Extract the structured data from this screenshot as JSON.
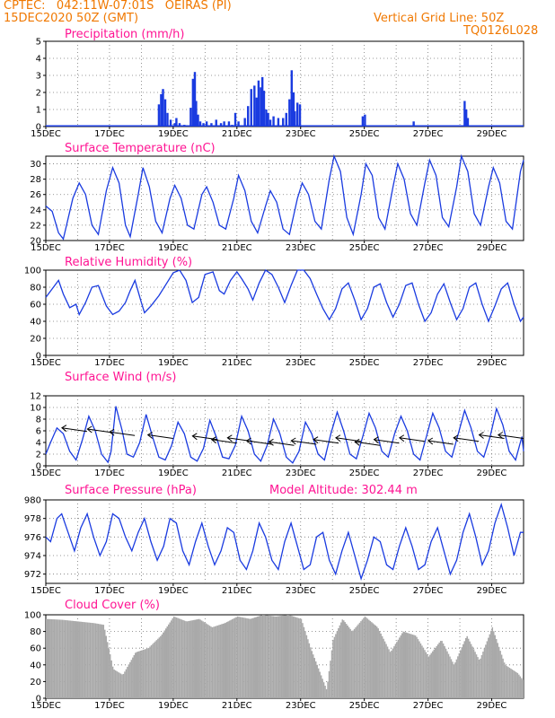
{
  "header": {
    "line1": "CPTEC:   042:11W-07:01S   OEIRAS (PI)",
    "line2": "15DEC2020 50Z (GMT)",
    "right1": "Vertical Grid Line: 50Z",
    "right2": "TQ0126L028"
  },
  "x_labels": [
    "15DEC",
    "17DEC",
    "19DEC",
    "21DEC",
    "23DEC",
    "25DEC",
    "27DEC",
    "29DEC"
  ],
  "panel_titles": {
    "precip": "Precipitation (mm/h)",
    "temp": "Surface Temperature (nC)",
    "rh": "Relative Humidity (%)",
    "wind": "Surface Wind (m/s)",
    "pres": "Surface Pressure (hPa)",
    "altitude": "Model Altitude: 302.44 m",
    "cloud": "Cloud Cover (%)"
  },
  "colors": {
    "line": "#1a3be0",
    "precip": "#1a3be0",
    "cloud": "#a9a9a9",
    "header": "#f07800",
    "title": "#ff1493"
  },
  "chart_data": [
    {
      "type": "bar",
      "title": "Precipitation (mm/h)",
      "xlim": [
        15,
        30
      ],
      "ylim": [
        0,
        5
      ],
      "yticks": [
        0,
        1,
        2,
        3,
        4,
        5
      ],
      "x": [
        18.55,
        18.62,
        18.68,
        18.75,
        18.82,
        18.92,
        19.05,
        19.1,
        19.2,
        19.35,
        19.55,
        19.62,
        19.68,
        19.72,
        19.78,
        19.85,
        19.95,
        20.05,
        20.2,
        20.35,
        20.5,
        20.6,
        20.75,
        20.85,
        20.95,
        21.05,
        21.25,
        21.35,
        21.45,
        21.55,
        21.62,
        21.68,
        21.75,
        21.8,
        21.85,
        21.92,
        21.98,
        22.05,
        22.15,
        22.3,
        22.45,
        22.55,
        22.65,
        22.72,
        22.78,
        22.82,
        22.9,
        22.98,
        24.95,
        25.02,
        26.55,
        28.15,
        28.2,
        28.25
      ],
      "values": [
        1.3,
        1.9,
        2.2,
        1.6,
        0.8,
        0.4,
        0.2,
        0.5,
        0.2,
        0.1,
        1.1,
        2.8,
        3.2,
        1.5,
        0.7,
        0.3,
        0.2,
        0.3,
        0.2,
        0.4,
        0.2,
        0.3,
        0.3,
        0.1,
        0.8,
        0.3,
        0.5,
        1.2,
        2.2,
        2.4,
        1.7,
        2.7,
        2.3,
        2.9,
        2.1,
        1.0,
        0.8,
        0.4,
        0.6,
        0.5,
        0.5,
        0.8,
        1.6,
        3.3,
        2.0,
        0.9,
        1.4,
        1.3,
        0.6,
        0.7,
        0.3,
        1.5,
        1.0,
        0.5
      ]
    },
    {
      "type": "line",
      "title": "Surface Temperature (nC)",
      "xlim": [
        15,
        30
      ],
      "ylim": [
        20,
        31
      ],
      "yticks": [
        20,
        22,
        24,
        26,
        28,
        30
      ],
      "x": [
        15.0,
        15.2,
        15.4,
        15.55,
        15.85,
        16.05,
        16.25,
        16.45,
        16.65,
        16.9,
        17.1,
        17.3,
        17.5,
        17.65,
        17.9,
        18.05,
        18.25,
        18.45,
        18.65,
        18.9,
        19.05,
        19.25,
        19.45,
        19.65,
        19.9,
        20.05,
        20.25,
        20.45,
        20.65,
        20.9,
        21.05,
        21.25,
        21.45,
        21.65,
        21.9,
        22.05,
        22.25,
        22.45,
        22.65,
        22.9,
        23.05,
        23.25,
        23.45,
        23.65,
        23.9,
        24.05,
        24.25,
        24.45,
        24.65,
        24.9,
        25.05,
        25.25,
        25.45,
        25.65,
        25.9,
        26.05,
        26.25,
        26.45,
        26.65,
        26.9,
        27.05,
        27.25,
        27.45,
        27.65,
        27.9,
        28.05,
        28.25,
        28.45,
        28.65,
        28.9,
        29.05,
        29.25,
        29.45,
        29.65,
        29.9,
        30.0
      ],
      "values": [
        24.5,
        23.8,
        21.0,
        20.2,
        25.5,
        27.5,
        26.0,
        22.0,
        20.8,
        26.5,
        29.5,
        27.5,
        22.0,
        20.5,
        26.0,
        29.5,
        27.0,
        22.5,
        21.0,
        25.5,
        27.2,
        25.5,
        22.0,
        21.5,
        26.0,
        27.0,
        25.0,
        22.0,
        21.5,
        25.5,
        28.5,
        26.5,
        22.5,
        21.0,
        24.5,
        26.5,
        25.0,
        21.5,
        20.8,
        25.5,
        27.5,
        26.0,
        22.5,
        21.5,
        28.0,
        31.0,
        29.0,
        23.0,
        20.8,
        26.0,
        30.0,
        28.5,
        23.0,
        21.5,
        27.0,
        30.0,
        28.0,
        23.5,
        22.0,
        27.5,
        30.5,
        28.5,
        23.0,
        21.8,
        27.0,
        31.0,
        29.0,
        23.5,
        22.0,
        27.0,
        29.5,
        27.5,
        22.5,
        21.5,
        29.0,
        30.5
      ]
    },
    {
      "type": "line",
      "title": "Relative Humidity (%)",
      "xlim": [
        15,
        30
      ],
      "ylim": [
        0,
        100
      ],
      "yticks": [
        0,
        20,
        40,
        60,
        80,
        100
      ],
      "x": [
        15.0,
        15.2,
        15.4,
        15.55,
        15.75,
        15.95,
        16.05,
        16.25,
        16.45,
        16.65,
        16.9,
        17.1,
        17.3,
        17.5,
        17.65,
        17.8,
        18.0,
        18.1,
        18.3,
        18.55,
        18.8,
        19.0,
        19.2,
        19.4,
        19.6,
        19.8,
        20.0,
        20.25,
        20.45,
        20.6,
        20.8,
        21.0,
        21.15,
        21.35,
        21.5,
        21.7,
        21.9,
        22.1,
        22.3,
        22.5,
        22.7,
        22.9,
        23.1,
        23.3,
        23.5,
        23.7,
        23.9,
        24.1,
        24.3,
        24.5,
        24.7,
        24.9,
        25.1,
        25.3,
        25.5,
        25.7,
        25.9,
        26.1,
        26.3,
        26.5,
        26.7,
        26.9,
        27.1,
        27.3,
        27.5,
        27.7,
        27.9,
        28.1,
        28.3,
        28.5,
        28.7,
        28.9,
        29.1,
        29.3,
        29.5,
        29.7,
        29.9,
        30.0
      ],
      "values": [
        68,
        78,
        88,
        72,
        56,
        60,
        48,
        62,
        80,
        82,
        58,
        48,
        52,
        62,
        76,
        88,
        62,
        50,
        58,
        70,
        85,
        97,
        100,
        88,
        62,
        68,
        95,
        98,
        76,
        72,
        88,
        98,
        90,
        78,
        65,
        85,
        100,
        95,
        80,
        62,
        82,
        100,
        100,
        90,
        72,
        55,
        42,
        55,
        78,
        85,
        65,
        42,
        55,
        80,
        84,
        62,
        45,
        60,
        82,
        85,
        60,
        40,
        50,
        72,
        84,
        62,
        42,
        55,
        80,
        85,
        60,
        40,
        58,
        78,
        85,
        60,
        40,
        45
      ]
    },
    {
      "type": "line",
      "title": "Surface Wind (m/s)",
      "xlim": [
        15,
        30
      ],
      "ylim": [
        0,
        12
      ],
      "yticks": [
        0,
        2,
        4,
        6,
        8,
        10,
        12
      ],
      "x": [
        15.0,
        15.15,
        15.35,
        15.55,
        15.75,
        15.95,
        16.15,
        16.35,
        16.55,
        16.75,
        16.95,
        17.05,
        17.2,
        17.4,
        17.55,
        17.75,
        17.95,
        18.15,
        18.35,
        18.55,
        18.75,
        18.95,
        19.15,
        19.35,
        19.55,
        19.75,
        19.95,
        20.15,
        20.35,
        20.55,
        20.75,
        20.95,
        21.15,
        21.35,
        21.55,
        21.75,
        21.95,
        22.15,
        22.35,
        22.55,
        22.75,
        22.95,
        23.15,
        23.35,
        23.55,
        23.75,
        23.95,
        24.15,
        24.35,
        24.55,
        24.75,
        24.95,
        25.15,
        25.35,
        25.55,
        25.75,
        25.95,
        26.15,
        26.35,
        26.55,
        26.75,
        26.95,
        27.15,
        27.35,
        27.55,
        27.75,
        27.95,
        28.15,
        28.35,
        28.55,
        28.75,
        28.95,
        29.15,
        29.35,
        29.55,
        29.75,
        29.95,
        30.0
      ],
      "values": [
        2.0,
        4.0,
        6.5,
        5.5,
        2.5,
        1.0,
        4.5,
        8.5,
        6.0,
        2.0,
        0.6,
        2.5,
        10.2,
        6.0,
        2.0,
        1.5,
        4.0,
        8.8,
        5.0,
        1.5,
        1.0,
        3.5,
        7.5,
        5.5,
        1.5,
        0.8,
        3.0,
        7.8,
        5.0,
        1.5,
        1.2,
        3.5,
        8.5,
        6.0,
        2.0,
        0.8,
        3.5,
        8.0,
        5.5,
        1.5,
        0.5,
        2.5,
        7.5,
        5.5,
        2.0,
        1.0,
        5.5,
        9.2,
        6.0,
        2.0,
        1.2,
        5.0,
        9.0,
        6.5,
        2.5,
        1.5,
        5.5,
        8.5,
        6.0,
        2.0,
        1.0,
        5.0,
        9.0,
        6.5,
        2.5,
        1.5,
        5.5,
        9.5,
        6.5,
        2.5,
        1.5,
        5.0,
        9.8,
        7.0,
        2.5,
        1.0,
        5.0,
        2.5
      ]
    },
    {
      "type": "line",
      "title": "Surface Pressure (hPa)",
      "xlim": [
        15,
        30
      ],
      "ylim": [
        971,
        980
      ],
      "yticks": [
        972,
        974,
        976,
        978,
        980
      ],
      "x": [
        15.0,
        15.15,
        15.35,
        15.5,
        15.7,
        15.9,
        16.1,
        16.3,
        16.5,
        16.7,
        16.9,
        17.1,
        17.3,
        17.5,
        17.7,
        17.9,
        18.1,
        18.3,
        18.5,
        18.7,
        18.9,
        19.1,
        19.3,
        19.5,
        19.7,
        19.9,
        20.1,
        20.3,
        20.5,
        20.7,
        20.9,
        21.1,
        21.3,
        21.5,
        21.7,
        21.9,
        22.1,
        22.3,
        22.5,
        22.7,
        22.9,
        23.1,
        23.3,
        23.5,
        23.7,
        23.9,
        24.1,
        24.3,
        24.5,
        24.7,
        24.9,
        25.1,
        25.3,
        25.5,
        25.7,
        25.9,
        26.1,
        26.3,
        26.5,
        26.7,
        26.9,
        27.1,
        27.3,
        27.5,
        27.7,
        27.9,
        28.1,
        28.3,
        28.5,
        28.7,
        28.9,
        29.1,
        29.3,
        29.5,
        29.7,
        29.9,
        30.0
      ],
      "values": [
        976.0,
        975.5,
        978.0,
        978.5,
        976.5,
        974.5,
        977.0,
        978.5,
        976.0,
        974.0,
        975.5,
        978.5,
        978.0,
        976.0,
        974.5,
        976.5,
        978.0,
        975.5,
        973.5,
        975.0,
        978.0,
        977.5,
        974.5,
        973.0,
        975.5,
        977.5,
        975.0,
        973.0,
        974.5,
        977.0,
        976.5,
        973.5,
        972.5,
        974.5,
        977.5,
        976.0,
        973.5,
        972.5,
        975.5,
        977.5,
        975.0,
        972.5,
        973.0,
        976.0,
        976.5,
        973.5,
        972.0,
        974.5,
        976.5,
        974.0,
        971.5,
        973.5,
        976.0,
        975.5,
        973.0,
        972.5,
        975.0,
        977.0,
        975.0,
        972.5,
        973.0,
        975.5,
        977.0,
        974.5,
        972.0,
        973.5,
        976.5,
        978.5,
        976.0,
        973.0,
        974.5,
        977.5,
        979.5,
        977.0,
        974.0,
        976.5,
        976.5
      ]
    },
    {
      "type": "bar",
      "title": "Cloud Cover (%)",
      "xlim": [
        15,
        30
      ],
      "ylim": [
        0,
        100
      ],
      "yticks": [
        0,
        20,
        40,
        60,
        80,
        100
      ],
      "x": [
        15.0,
        15.5,
        16.0,
        16.5,
        16.8,
        17.1,
        17.4,
        17.8,
        18.2,
        18.6,
        19.0,
        19.4,
        19.8,
        20.2,
        20.6,
        21.0,
        21.4,
        21.8,
        22.2,
        22.6,
        23.0,
        23.3,
        23.6,
        23.8,
        24.0,
        24.3,
        24.6,
        25.0,
        25.4,
        25.8,
        26.2,
        26.6,
        27.0,
        27.4,
        27.8,
        28.2,
        28.6,
        29.0,
        29.4,
        29.8,
        30.0
      ],
      "values": [
        95,
        94,
        92,
        90,
        88,
        35,
        28,
        55,
        60,
        75,
        98,
        92,
        95,
        85,
        90,
        98,
        95,
        100,
        98,
        100,
        95,
        60,
        30,
        10,
        70,
        95,
        80,
        98,
        85,
        55,
        80,
        75,
        50,
        70,
        40,
        75,
        45,
        85,
        40,
        30,
        20
      ]
    }
  ]
}
